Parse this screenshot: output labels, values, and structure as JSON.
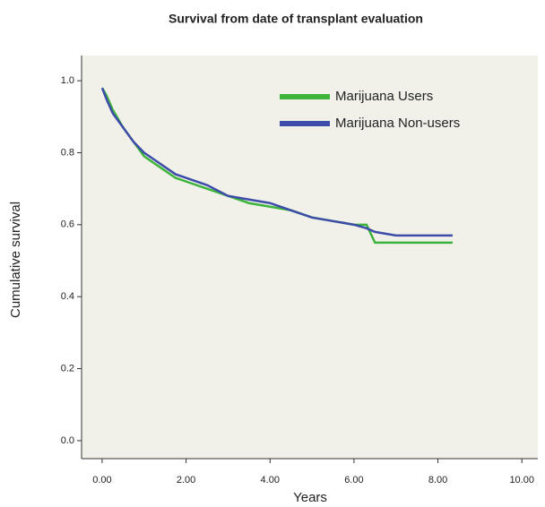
{
  "chart_data": {
    "type": "line",
    "title": "Survival from date of transplant evaluation",
    "x_label": "Years",
    "y_label": "Cumulative survival",
    "x": [
      0,
      0.1,
      0.25,
      0.5,
      0.75,
      1,
      1.25,
      1.5,
      1.75,
      2,
      2.5,
      3,
      3.5,
      4,
      4.5,
      5,
      5.5,
      6,
      6.3,
      6.5,
      7,
      7.5,
      8,
      8.35
    ],
    "series": [
      {
        "name": "Marijuana Users",
        "color": "#3cb43c",
        "values": [
          0.98,
          0.96,
          0.92,
          0.87,
          0.83,
          0.79,
          0.77,
          0.75,
          0.73,
          0.72,
          0.7,
          0.68,
          0.66,
          0.65,
          0.64,
          0.62,
          0.61,
          0.6,
          0.6,
          0.55,
          0.55,
          0.55,
          0.55,
          0.55
        ]
      },
      {
        "name": "Marijuana Non-users",
        "color": "#3c4ca8",
        "values": [
          0.98,
          0.95,
          0.91,
          0.87,
          0.83,
          0.8,
          0.78,
          0.76,
          0.74,
          0.73,
          0.71,
          0.68,
          0.67,
          0.66,
          0.64,
          0.62,
          0.61,
          0.6,
          0.59,
          0.58,
          0.57,
          0.57,
          0.57,
          0.57
        ]
      }
    ],
    "xlim": [
      -0.49,
      10.38
    ],
    "ylim": [
      -0.05,
      1.07
    ],
    "xticks": [
      {
        "value": 0,
        "label": "0.00"
      },
      {
        "value": 2,
        "label": "2.00"
      },
      {
        "value": 4,
        "label": "4.00"
      },
      {
        "value": 6,
        "label": "6.00"
      },
      {
        "value": 8,
        "label": "8.00"
      },
      {
        "value": 10,
        "label": "10.00"
      }
    ],
    "yticks": [
      {
        "value": 0,
        "label": "0.0"
      },
      0.2,
      0.4,
      0.6,
      0.8,
      {
        "value": 1,
        "label": "1.0"
      }
    ],
    "legend": "top-right"
  }
}
